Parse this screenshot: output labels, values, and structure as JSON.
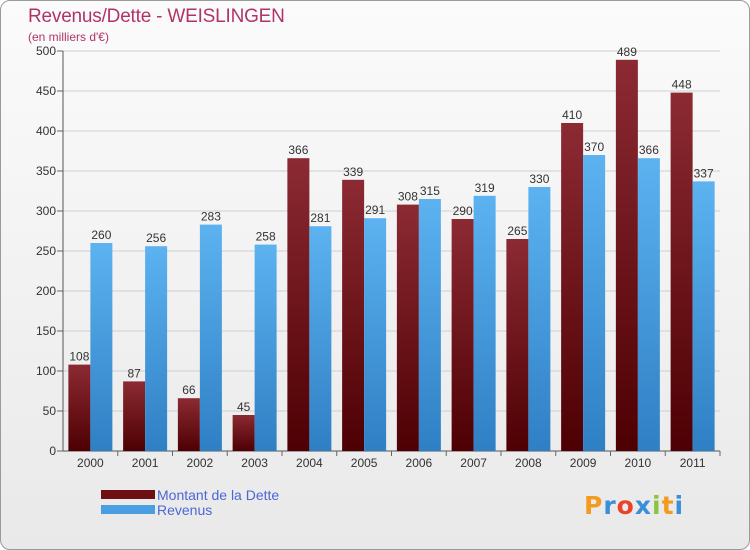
{
  "chart_data": {
    "type": "bar",
    "title": "Revenus/Dette - WEISLINGEN",
    "subtitle": "(en milliers d'€)",
    "categories": [
      "2000",
      "2001",
      "2002",
      "2003",
      "2004",
      "2005",
      "2006",
      "2007",
      "2008",
      "2009",
      "2010",
      "2011"
    ],
    "series": [
      {
        "name": "Montant de la Dette",
        "color": "#6e0f14",
        "values": [
          108,
          87,
          66,
          45,
          366,
          339,
          308,
          290,
          265,
          410,
          489,
          448
        ]
      },
      {
        "name": "Revenus",
        "color": "#4a9ee2",
        "values": [
          260,
          256,
          283,
          258,
          281,
          291,
          315,
          319,
          330,
          370,
          366,
          337
        ]
      }
    ],
    "ylim": [
      0,
      500
    ],
    "yticks": [
      0,
      50,
      100,
      150,
      200,
      250,
      300,
      350,
      400,
      450,
      500
    ],
    "grid": true,
    "legend_position": "bottom-left"
  },
  "logo": {
    "text": "Proxiti",
    "colors": [
      "#f39a1f",
      "#3b8fd9",
      "#e9442b",
      "#3b8fd9",
      "#8bc53f",
      "#f39a1f",
      "#3b8fd9"
    ]
  }
}
